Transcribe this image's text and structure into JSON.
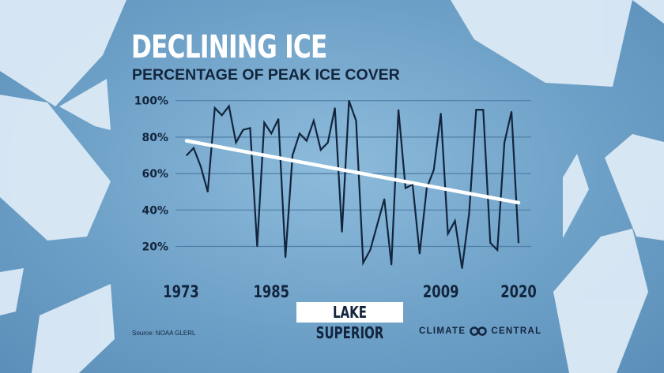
{
  "title": "DECLINING ICE",
  "subtitle": "PERCENTAGE OF PEAK ICE COVER",
  "lake_label": "LAKE SUPERIOR",
  "source": "Source: NOAA GLERL",
  "brand": {
    "left": "CLIMATE",
    "right": "CENTRAL",
    "icon": "infinity-logo-icon"
  },
  "colors": {
    "line": "#13253d",
    "trend": "#ffffff",
    "text": "#13253d",
    "title": "#ffffff",
    "ice": "#dceaf6"
  },
  "chart_data": {
    "type": "line",
    "title": "DECLINING ICE",
    "subtitle": "PERCENTAGE OF PEAK ICE COVER",
    "x": [
      1973,
      1974,
      1975,
      1976,
      1977,
      1978,
      1979,
      1980,
      1981,
      1982,
      1983,
      1984,
      1985,
      1986,
      1987,
      1988,
      1989,
      1990,
      1991,
      1992,
      1993,
      1994,
      1995,
      1996,
      1997,
      1998,
      1999,
      2000,
      2001,
      2002,
      2003,
      2004,
      2005,
      2006,
      2007,
      2008,
      2009,
      2010,
      2011,
      2012,
      2013,
      2014,
      2015,
      2016,
      2017,
      2018,
      2019,
      2020
    ],
    "series": [
      {
        "values": [
          70,
          74,
          64,
          50,
          96,
          92,
          97,
          77,
          84,
          85,
          20,
          88,
          82,
          90,
          14,
          70,
          82,
          78,
          89,
          73,
          77,
          96,
          28,
          100,
          89,
          11,
          18,
          32,
          46,
          10,
          95,
          52,
          54,
          16,
          52,
          62,
          93,
          27,
          34,
          8,
          38,
          95,
          95,
          22,
          18,
          77,
          94,
          22
        ]
      }
    ],
    "trend": {
      "start": [
        1973,
        78
      ],
      "end": [
        2020,
        44
      ]
    },
    "xticks": [
      "1973",
      "1985",
      "2009",
      "2020"
    ],
    "yticks": [
      "100%",
      "80%",
      "60%",
      "40%",
      "20%"
    ],
    "ylim": [
      0,
      100
    ],
    "grid": true
  }
}
